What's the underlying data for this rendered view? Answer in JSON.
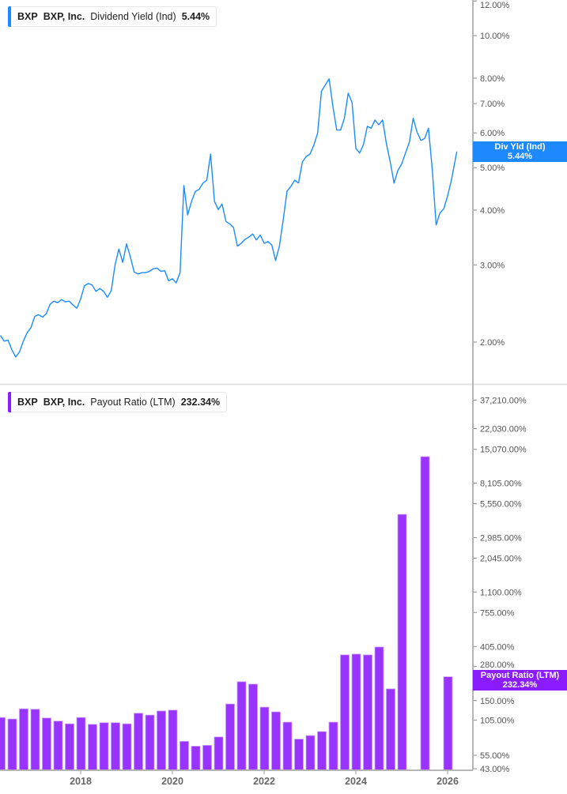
{
  "top_panel": {
    "legend": {
      "ticker": "BXP",
      "company": "BXP, Inc.",
      "metric": "Dividend Yield (Ind)",
      "value": "5.44%"
    },
    "badge": {
      "label": "Div Yld (Ind)",
      "value": "5.44%"
    },
    "color": "#1a8cff"
  },
  "bottom_panel": {
    "legend": {
      "ticker": "BXP",
      "company": "BXP, Inc.",
      "metric": "Payout Ratio (LTM)",
      "value": "232.34%"
    },
    "badge": {
      "label": "Payout Ratio (LTM)",
      "value": "232.34%"
    },
    "color": "#9933ff"
  },
  "chart_data": [
    {
      "type": "line",
      "title": "",
      "series_name": "Dividend Yield (Ind)",
      "y_scale": "log",
      "unit": "%",
      "ylim": [
        1.8,
        12
      ],
      "xlim": [
        "2016-04",
        "2026-07"
      ],
      "y_ticks": [
        {
          "value": 12,
          "label": "12.00%"
        },
        {
          "value": 10,
          "label": "10.00%"
        },
        {
          "value": 8,
          "label": "8.00%"
        },
        {
          "value": 7,
          "label": "7.00%"
        },
        {
          "value": 6,
          "label": "6.00%"
        },
        {
          "value": 5,
          "label": "5.00%"
        },
        {
          "value": 4,
          "label": "4.00%"
        },
        {
          "value": 3,
          "label": "3.00%"
        },
        {
          "value": 2,
          "label": "2.00%"
        }
      ],
      "start": "2016-04",
      "frequency": "monthly",
      "values": [
        2.07,
        2.01,
        2.02,
        1.92,
        1.85,
        1.9,
        2.01,
        2.1,
        2.16,
        2.29,
        2.31,
        2.28,
        2.32,
        2.44,
        2.48,
        2.46,
        2.5,
        2.47,
        2.48,
        2.43,
        2.39,
        2.51,
        2.69,
        2.72,
        2.7,
        2.61,
        2.65,
        2.61,
        2.53,
        2.62,
        3.0,
        3.26,
        3.04,
        3.35,
        3.13,
        2.89,
        2.86,
        2.88,
        2.88,
        2.9,
        2.94,
        2.95,
        2.9,
        2.91,
        2.76,
        2.79,
        2.73,
        2.88,
        4.55,
        3.9,
        4.19,
        4.41,
        4.46,
        4.61,
        4.68,
        5.37,
        4.19,
        4.01,
        4.13,
        3.77,
        3.72,
        3.65,
        3.31,
        3.36,
        3.43,
        3.47,
        3.53,
        3.42,
        3.51,
        3.36,
        3.39,
        3.33,
        3.07,
        3.31,
        3.81,
        4.42,
        4.53,
        4.68,
        4.61,
        5.15,
        5.3,
        5.37,
        5.62,
        6.0,
        7.47,
        7.71,
        7.97,
        6.89,
        6.09,
        6.09,
        6.48,
        7.39,
        7.04,
        5.53,
        5.4,
        5.65,
        6.21,
        6.15,
        6.42,
        6.26,
        6.42,
        5.66,
        5.15,
        4.61,
        4.93,
        5.1,
        5.4,
        5.72,
        6.48,
        6.03,
        5.77,
        5.83,
        6.15,
        4.94,
        3.7,
        3.94,
        4.03,
        4.31,
        4.68,
        5.44
      ]
    },
    {
      "type": "bar",
      "title": "",
      "series_name": "Payout Ratio (LTM)",
      "y_scale": "log",
      "unit": "%",
      "ylim": [
        43,
        37210
      ],
      "y_ticks": [
        {
          "value": 37210,
          "label": "37,210.00%"
        },
        {
          "value": 22030,
          "label": "22,030.00%"
        },
        {
          "value": 15070,
          "label": "15,070.00%"
        },
        {
          "value": 8105,
          "label": "8,105.00%"
        },
        {
          "value": 5550,
          "label": "5,550.00%"
        },
        {
          "value": 2985,
          "label": "2,985.00%"
        },
        {
          "value": 2045,
          "label": "2,045.00%"
        },
        {
          "value": 1100,
          "label": "1,100.00%"
        },
        {
          "value": 755,
          "label": "755.00%"
        },
        {
          "value": 405,
          "label": "405.00%"
        },
        {
          "value": 280,
          "label": "280.00%"
        },
        {
          "value": 150,
          "label": "150.00%"
        },
        {
          "value": 105,
          "label": "105.00%"
        },
        {
          "value": 55,
          "label": "55.00%"
        },
        {
          "value": 43,
          "label": "43.00%"
        }
      ],
      "x_ticks": [
        "2018",
        "2020",
        "2022",
        "2024",
        "2026"
      ],
      "start_quarter": "2016-Q1",
      "frequency": "quarterly",
      "values": [
        110,
        107,
        129,
        128,
        109,
        103,
        98,
        110,
        97,
        100,
        100,
        98,
        119,
        115,
        124,
        126,
        71,
        65,
        66,
        77,
        141,
        212,
        203,
        133,
        122,
        101,
        74,
        79,
        85,
        101,
        347,
        352,
        347,
        401,
        186,
        4570,
        null,
        13170,
        null,
        232.34
      ]
    }
  ]
}
